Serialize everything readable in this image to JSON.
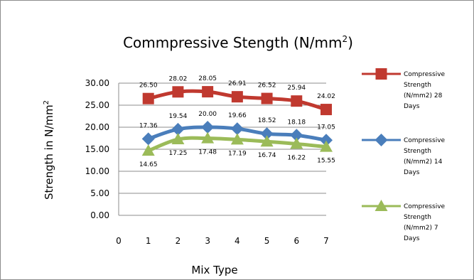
{
  "chart_data": {
    "type": "line",
    "title": "Commpressive Stength (N/mm",
    "title_superscript": "2",
    "title_close": ")",
    "xlabel": "Mix Type",
    "ylabel": "Strength in N/mm",
    "ylabel_superscript": "2",
    "x": [
      1,
      2,
      3,
      4,
      5,
      6,
      7
    ],
    "x_ticks": [
      "0",
      "1",
      "2",
      "3",
      "4",
      "5",
      "6",
      "7"
    ],
    "xlim": [
      0,
      7
    ],
    "ylim": [
      0,
      30
    ],
    "y_ticks": [
      "0.00",
      "5.00",
      "10.00",
      "15.00",
      "20.00",
      "25.00",
      "30.00"
    ],
    "grid": "horizontal",
    "legend_position": "right",
    "series": [
      {
        "name_lines": [
          "Compressive",
          "Strength",
          "(N/mm2) 28",
          "Days"
        ],
        "color": "#c0392f",
        "marker": "square",
        "values": [
          26.5,
          28.02,
          28.05,
          26.91,
          26.52,
          25.94,
          24.02
        ],
        "labels": [
          "26.50",
          "28.02",
          "28.05",
          "26.91",
          "26.52",
          "25.94",
          "24.02"
        ],
        "label_position": "above"
      },
      {
        "name_lines": [
          "Compressive",
          "Strength",
          "(N/mm2) 14",
          "Days"
        ],
        "color": "#4a7ebb",
        "marker": "diamond",
        "values": [
          17.36,
          19.54,
          20.0,
          19.66,
          18.52,
          18.18,
          17.05
        ],
        "labels": [
          "17.36",
          "19.54",
          "20.00",
          "19.66",
          "18.52",
          "18.18",
          "17.05"
        ],
        "label_position": "above"
      },
      {
        "name_lines": [
          "Compressive",
          "Strength",
          "(N/mm2) 7",
          "Days"
        ],
        "color": "#9bbb59",
        "marker": "triangle",
        "values": [
          14.65,
          17.25,
          17.48,
          17.19,
          16.74,
          16.22,
          15.55
        ],
        "labels": [
          "14.65",
          "17.25",
          "17.48",
          "17.19",
          "16.74",
          "16.22",
          "15.55"
        ],
        "label_position": "below"
      }
    ]
  }
}
